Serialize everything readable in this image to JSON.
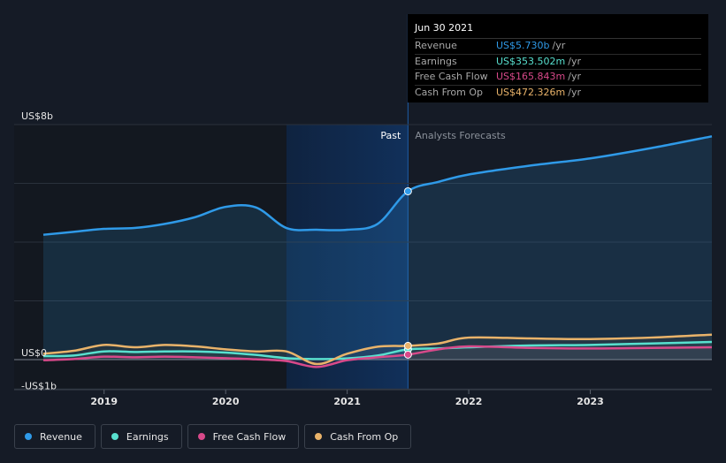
{
  "tooltip": {
    "date": "Jun 30 2021",
    "rows": [
      {
        "label": "Revenue",
        "value": "US$5.730b",
        "unit": "/yr",
        "color": "#2f9ae8"
      },
      {
        "label": "Earnings",
        "value": "US$353.502m",
        "unit": "/yr",
        "color": "#58e0cf"
      },
      {
        "label": "Free Cash Flow",
        "value": "US$165.843m",
        "unit": "/yr",
        "color": "#d8498a"
      },
      {
        "label": "Cash From Op",
        "value": "US$472.326m",
        "unit": "/yr",
        "color": "#e9b36a"
      }
    ]
  },
  "legend": [
    {
      "label": "Revenue",
      "color": "#2f9ae8"
    },
    {
      "label": "Earnings",
      "color": "#58e0cf"
    },
    {
      "label": "Free Cash Flow",
      "color": "#d8498a"
    },
    {
      "label": "Cash From Op",
      "color": "#e9b36a"
    }
  ],
  "chart_data": {
    "type": "line",
    "y_tick_labels": [
      {
        "value": 8,
        "label": "US$8b"
      },
      {
        "value": 0,
        "label": "US$0"
      },
      {
        "value": -1,
        "label": "-US$1b"
      }
    ],
    "ylim": [
      -1,
      8
    ],
    "xlim": [
      2018.5,
      2024.0
    ],
    "x_ticks": [
      2019,
      2020,
      2021,
      2022,
      2023
    ],
    "x_tick_labels": [
      "2019",
      "2020",
      "2021",
      "2022",
      "2023"
    ],
    "past_label": "Past",
    "forecast_label": "Analysts Forecasts",
    "past_range": [
      2020.5,
      2021.5
    ],
    "divider": 2021.5,
    "highlight_x": 2021.5,
    "series": [
      {
        "name": "Revenue",
        "color": "#2f9ae8",
        "area": true,
        "x": [
          2018.5,
          2018.75,
          2019.0,
          2019.25,
          2019.5,
          2019.75,
          2020.0,
          2020.25,
          2020.5,
          2020.75,
          2021.0,
          2021.25,
          2021.5,
          2021.75,
          2022.0,
          2022.5,
          2023.0,
          2023.5,
          2024.0
        ],
        "y": [
          4.25,
          4.35,
          4.45,
          4.48,
          4.62,
          4.85,
          5.2,
          5.18,
          4.48,
          4.42,
          4.42,
          4.62,
          5.73,
          6.05,
          6.3,
          6.6,
          6.85,
          7.2,
          7.6
        ]
      },
      {
        "name": "Earnings",
        "color": "#58e0cf",
        "x": [
          2018.5,
          2018.75,
          2019.0,
          2019.25,
          2019.5,
          2019.75,
          2020.0,
          2020.25,
          2020.5,
          2020.75,
          2021.0,
          2021.25,
          2021.5,
          2021.75,
          2022.0,
          2022.5,
          2023.0,
          2023.5,
          2024.0
        ],
        "y": [
          0.12,
          0.14,
          0.28,
          0.26,
          0.28,
          0.28,
          0.24,
          0.16,
          0.05,
          0.02,
          0.04,
          0.14,
          0.35,
          0.38,
          0.42,
          0.48,
          0.5,
          0.55,
          0.6
        ]
      },
      {
        "name": "Free Cash Flow",
        "color": "#d8498a",
        "x": [
          2018.5,
          2018.75,
          2019.0,
          2019.25,
          2019.5,
          2019.75,
          2020.0,
          2020.25,
          2020.5,
          2020.75,
          2021.0,
          2021.25,
          2021.5,
          2021.75,
          2022.0,
          2022.5,
          2023.0,
          2023.5,
          2024.0
        ],
        "y": [
          -0.02,
          0.02,
          0.1,
          0.08,
          0.1,
          0.08,
          0.05,
          0.01,
          -0.05,
          -0.25,
          -0.02,
          0.08,
          0.17,
          0.35,
          0.45,
          0.4,
          0.38,
          0.4,
          0.42
        ]
      },
      {
        "name": "Cash From Op",
        "color": "#e9b36a",
        "x": [
          2018.5,
          2018.75,
          2019.0,
          2019.25,
          2019.5,
          2019.75,
          2020.0,
          2020.25,
          2020.5,
          2020.75,
          2021.0,
          2021.25,
          2021.5,
          2021.75,
          2022.0,
          2022.5,
          2023.0,
          2023.5,
          2024.0
        ],
        "y": [
          0.2,
          0.3,
          0.5,
          0.42,
          0.5,
          0.45,
          0.35,
          0.28,
          0.28,
          -0.15,
          0.2,
          0.44,
          0.47,
          0.55,
          0.75,
          0.72,
          0.7,
          0.75,
          0.85
        ]
      }
    ]
  }
}
